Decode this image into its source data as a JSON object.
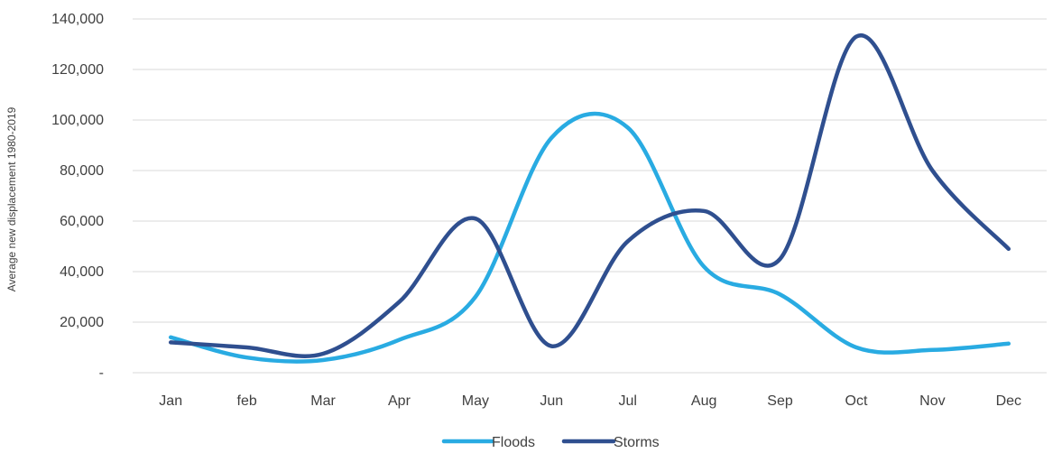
{
  "chart_data": {
    "type": "line",
    "categories": [
      "Jan",
      "feb",
      "Mar",
      "Apr",
      "May",
      "Jun",
      "Jul",
      "Aug",
      "Sep",
      "Oct",
      "Nov",
      "Dec"
    ],
    "series": [
      {
        "name": "Floods",
        "color": "#29abe2",
        "values": [
          14000,
          6000,
          5000,
          13000,
          30000,
          93000,
          97000,
          42000,
          31000,
          10000,
          9000,
          11500
        ]
      },
      {
        "name": "Storms",
        "color": "#2f4f8f",
        "values": [
          12000,
          10000,
          7500,
          28000,
          61000,
          10500,
          52000,
          64000,
          45000,
          133000,
          80000,
          49000
        ]
      }
    ],
    "ylabel": "Average new displacement 1980-2019",
    "xlabel": "",
    "ylim": [
      0,
      140000
    ],
    "yticks": [
      {
        "value": 0,
        "label": "-"
      },
      {
        "value": 20000,
        "label": "20,000"
      },
      {
        "value": 40000,
        "label": "40,000"
      },
      {
        "value": 60000,
        "label": "60,000"
      },
      {
        "value": 80000,
        "label": "80,000"
      },
      {
        "value": 100000,
        "label": "100,000"
      },
      {
        "value": 120000,
        "label": "120,000"
      },
      {
        "value": 140000,
        "label": "140,000"
      }
    ],
    "grid": true,
    "legend_position": "bottom"
  }
}
